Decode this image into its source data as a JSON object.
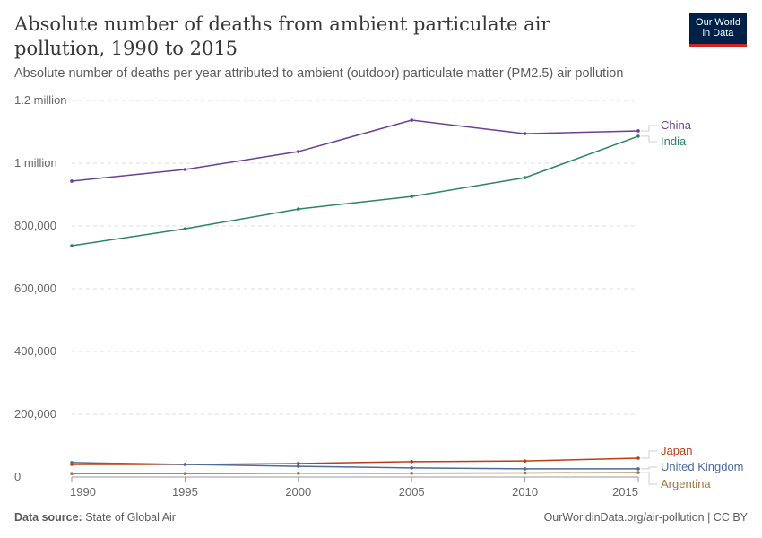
{
  "header": {
    "title": "Absolute number of deaths from ambient particulate air pollution, 1990 to 2015",
    "subtitle": "Absolute number of deaths per year attributed to ambient (outdoor) particulate matter (PM2.5) air pollution"
  },
  "logo": {
    "line1": "Our World",
    "line2": "in Data"
  },
  "footer": {
    "source_label": "Data source:",
    "source": "State of Global Air",
    "credit": "OurWorldinData.org/air-pollution | CC BY"
  },
  "chart_data": {
    "type": "line",
    "title": "Absolute number of deaths from ambient particulate air pollution, 1990 to 2015",
    "x": [
      1990,
      1995,
      2000,
      2005,
      2010,
      2015
    ],
    "xticks": [
      "1990",
      "1995",
      "2000",
      "2005",
      "2010",
      "2015"
    ],
    "ylim": [
      0,
      1200000
    ],
    "yticks": [
      {
        "v": 0,
        "label": "0"
      },
      {
        "v": 200000,
        "label": "200,000"
      },
      {
        "v": 400000,
        "label": "400,000"
      },
      {
        "v": 600000,
        "label": "600,000"
      },
      {
        "v": 800000,
        "label": "800,000"
      },
      {
        "v": 1000000,
        "label": "1 million"
      },
      {
        "v": 1200000,
        "label": "1.2 million"
      }
    ],
    "grid": true,
    "legend": "right-labels",
    "series": [
      {
        "name": "China",
        "color": "#6d3e91",
        "values": [
          943000,
          980000,
          1037000,
          1137000,
          1094000,
          1103000
        ]
      },
      {
        "name": "India",
        "color": "#2c8465",
        "values": [
          737000,
          791000,
          854000,
          894000,
          954000,
          1086000
        ]
      },
      {
        "name": "Japan",
        "color": "#be3c11",
        "values": [
          40000,
          40000,
          43000,
          49000,
          51000,
          60000
        ]
      },
      {
        "name": "United Kingdom",
        "color": "#4c6a9c",
        "values": [
          46000,
          40000,
          34000,
          29000,
          26000,
          26000
        ]
      },
      {
        "name": "Argentina",
        "color": "#a2753f",
        "values": [
          11000,
          11000,
          12000,
          12000,
          13000,
          14000
        ]
      }
    ]
  }
}
